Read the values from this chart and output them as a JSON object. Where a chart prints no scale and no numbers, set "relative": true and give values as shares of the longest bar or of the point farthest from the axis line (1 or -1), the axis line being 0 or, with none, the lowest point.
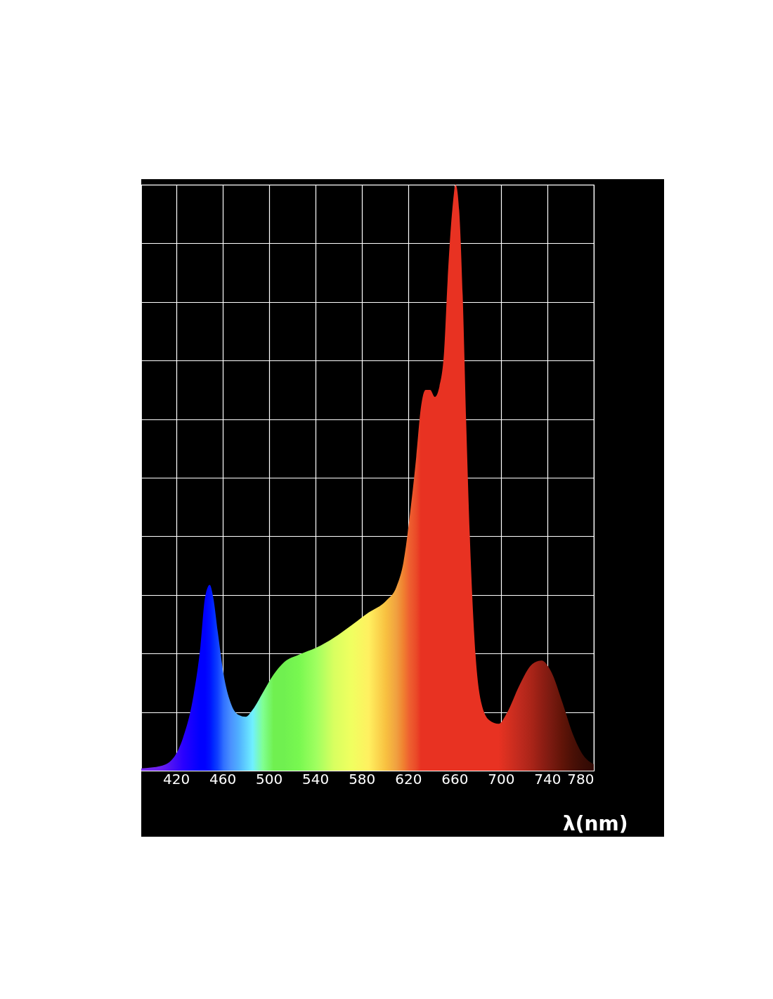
{
  "chart_data": {
    "type": "area",
    "xlabel": "λ(nm)",
    "relative": true,
    "grid": true,
    "xlim": [
      390,
      780
    ],
    "xticks": [
      420,
      460,
      500,
      540,
      580,
      620,
      660,
      700,
      740,
      780
    ],
    "x": [
      390,
      407,
      417,
      426,
      435,
      441,
      445,
      449,
      452,
      456,
      461,
      467,
      474,
      480,
      486,
      495,
      504,
      513,
      526,
      541,
      556,
      571,
      586,
      601,
      610,
      616,
      621,
      627,
      631,
      635,
      639,
      643,
      647,
      651,
      654,
      658,
      661,
      664,
      667,
      670,
      674,
      678,
      683,
      690,
      698,
      705,
      716,
      727,
      735,
      743,
      753,
      762,
      771,
      780
    ],
    "values": [
      0.004,
      0.008,
      0.02,
      0.056,
      0.128,
      0.212,
      0.296,
      0.317,
      0.296,
      0.236,
      0.164,
      0.116,
      0.095,
      0.092,
      0.104,
      0.134,
      0.164,
      0.185,
      0.198,
      0.21,
      0.227,
      0.248,
      0.27,
      0.29,
      0.314,
      0.356,
      0.428,
      0.536,
      0.62,
      0.65,
      0.65,
      0.638,
      0.656,
      0.716,
      0.836,
      0.956,
      1,
      0.956,
      0.812,
      0.596,
      0.356,
      0.2,
      0.116,
      0.086,
      0.08,
      0.098,
      0.146,
      0.182,
      0.188,
      0.17,
      0.116,
      0.062,
      0.026,
      0.011
    ],
    "colors": [
      "#7a2cf0",
      "#6a1ff0",
      "#4a10f5",
      "#2a00ff",
      "#1000ff",
      "#0000ff",
      "#0000ff",
      "#0010ff",
      "#0028ff",
      "#1040ff",
      "#3070ff",
      "#4a90ff",
      "#50b0ff",
      "#60d0ff",
      "#70f0ff",
      "#80ff90",
      "#70f050",
      "#70f050",
      "#78f850",
      "#a0ff60",
      "#d8ff60",
      "#f0ff60",
      "#fff060",
      "#f8c040",
      "#f0a040",
      "#f08030",
      "#ee6030",
      "#ea4a28",
      "#e83222",
      "#e83222",
      "#e83222",
      "#e83222",
      "#e83222",
      "#e83222",
      "#e83222",
      "#e83222",
      "#e83222",
      "#e83222",
      "#e83222",
      "#e83222",
      "#e83222",
      "#e83222",
      "#e83222",
      "#e83222",
      "#e83222",
      "#d83020",
      "#c02a1e",
      "#a82418",
      "#901e14",
      "#7a1a10",
      "#601408",
      "#4a1006",
      "#3a0c05",
      "#300a04"
    ]
  }
}
